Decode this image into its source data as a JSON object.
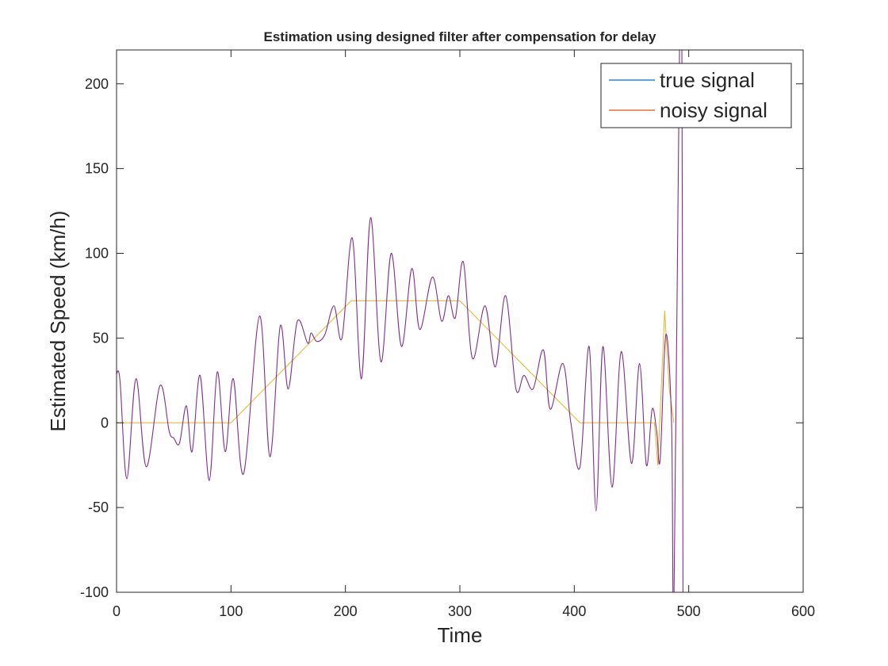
{
  "chart_data": {
    "type": "line",
    "title": "Estimation using designed filter after compensation for delay",
    "xlabel": "Time",
    "ylabel": "Estimated Speed (km/h)",
    "xlim": [
      0,
      600
    ],
    "ylim": [
      -100,
      220
    ],
    "xticks": [
      0,
      100,
      200,
      300,
      400,
      500,
      600
    ],
    "yticks": [
      -100,
      -50,
      0,
      50,
      100,
      150,
      200
    ],
    "xtick_labels": [
      "0",
      "100",
      "200",
      "300",
      "400",
      "500",
      "600"
    ],
    "ytick_labels": [
      "-100",
      "-50",
      "0",
      "50",
      "100",
      "150",
      "200"
    ],
    "grid": false,
    "legend_position": "top-right",
    "legend": [
      {
        "label": "true signal",
        "color": "#0072BD"
      },
      {
        "label": "noisy signal",
        "color": "#D95319"
      }
    ],
    "series": [
      {
        "name": "true signal",
        "color": "#EDB120",
        "points": [
          [
            0,
            0
          ],
          [
            100,
            0
          ],
          [
            205,
            72
          ],
          [
            300,
            72
          ],
          [
            405,
            0
          ],
          [
            470,
            0
          ],
          [
            473,
            -25
          ],
          [
            479,
            66
          ],
          [
            483,
            20
          ],
          [
            487,
            0
          ]
        ]
      },
      {
        "name": "noisy signal",
        "color": "#7E2F8E",
        "points": [
          [
            0,
            29
          ],
          [
            3,
            25
          ],
          [
            9,
            -33
          ],
          [
            17,
            26
          ],
          [
            26,
            -26
          ],
          [
            38,
            22
          ],
          [
            46,
            -5
          ],
          [
            50,
            -9
          ],
          [
            55,
            -12
          ],
          [
            61,
            10
          ],
          [
            66,
            -17
          ],
          [
            73,
            28
          ],
          [
            81,
            -34
          ],
          [
            88,
            30
          ],
          [
            95,
            -17
          ],
          [
            102,
            26
          ],
          [
            111,
            -30
          ],
          [
            125,
            63
          ],
          [
            134,
            -20
          ],
          [
            143,
            57
          ],
          [
            150,
            20
          ],
          [
            158,
            60
          ],
          [
            167,
            47
          ],
          [
            170,
            53
          ],
          [
            175,
            48
          ],
          [
            182,
            52
          ],
          [
            190,
            69
          ],
          [
            197,
            50
          ],
          [
            206,
            109
          ],
          [
            214,
            26
          ],
          [
            222,
            121
          ],
          [
            231,
            36
          ],
          [
            240,
            100
          ],
          [
            249,
            45
          ],
          [
            258,
            91
          ],
          [
            265,
            55
          ],
          [
            276,
            86
          ],
          [
            284,
            60
          ],
          [
            290,
            75
          ],
          [
            296,
            62
          ],
          [
            303,
            95
          ],
          [
            311,
            38
          ],
          [
            322,
            69
          ],
          [
            331,
            33
          ],
          [
            340,
            75
          ],
          [
            349,
            20
          ],
          [
            356,
            28
          ],
          [
            364,
            20
          ],
          [
            373,
            43
          ],
          [
            379,
            8
          ],
          [
            390,
            35
          ],
          [
            397,
            0
          ],
          [
            405,
            -26
          ],
          [
            413,
            45
          ],
          [
            419,
            -52
          ],
          [
            425,
            45
          ],
          [
            433,
            -38
          ],
          [
            441,
            42
          ],
          [
            450,
            -24
          ],
          [
            457,
            35
          ],
          [
            463,
            -25
          ],
          [
            468,
            8
          ],
          [
            472,
            -5
          ],
          [
            475,
            -22
          ],
          [
            480,
            52
          ],
          [
            485,
            0
          ],
          [
            487,
            -110
          ],
          [
            492,
            225
          ],
          [
            494,
            225
          ],
          [
            495,
            -110
          ]
        ]
      }
    ]
  }
}
